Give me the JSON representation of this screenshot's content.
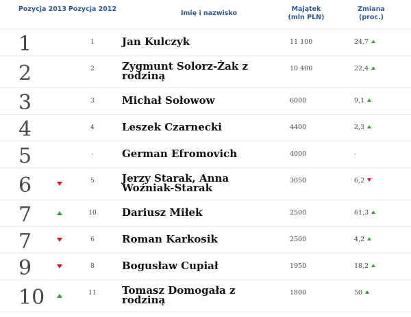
{
  "header": {
    "pos2013": "Pozycja 2013",
    "pos2012": "Pozycja 2012",
    "name": "Imię i nazwisko",
    "wealth": "Majątek (mln PLN)",
    "change": "Zmiana (proc.)"
  },
  "rows": [
    {
      "rank": "1",
      "trend": "",
      "prev": "1",
      "name": "Jan Kulczyk",
      "wealth": "11 100",
      "change": "24,7",
      "change_dir": "up"
    },
    {
      "rank": "2",
      "trend": "",
      "prev": "2",
      "name": "Zygmunt Solorz-Żak z rodziną",
      "wealth": "10 400",
      "change": "22,4",
      "change_dir": "up"
    },
    {
      "rank": "3",
      "trend": "",
      "prev": "3",
      "name": "Michał Sołowow",
      "wealth": "6000",
      "change": "9,1",
      "change_dir": "up"
    },
    {
      "rank": "4",
      "trend": "",
      "prev": "4",
      "name": "Leszek Czarnecki",
      "wealth": "4400",
      "change": "2,3",
      "change_dir": "up"
    },
    {
      "rank": "5",
      "trend": "",
      "prev": "-",
      "name": "German Efromovich",
      "wealth": "4000",
      "change": "-",
      "change_dir": ""
    },
    {
      "rank": "6",
      "trend": "down",
      "prev": "5",
      "name": "Jerzy Starak, Anna Woźniak-Starak",
      "wealth": "3050",
      "change": "6,2",
      "change_dir": "down"
    },
    {
      "rank": "7",
      "trend": "up",
      "prev": "10",
      "name": "Dariusz Miłek",
      "wealth": "2500",
      "change": "61,3",
      "change_dir": "up"
    },
    {
      "rank": "7",
      "trend": "down",
      "prev": "6",
      "name": "Roman Karkosik",
      "wealth": "2500",
      "change": "4,2",
      "change_dir": "up"
    },
    {
      "rank": "9",
      "trend": "down",
      "prev": "8",
      "name": "Bogusław Cupiał",
      "wealth": "1950",
      "change": "18,2",
      "change_dir": "up"
    },
    {
      "rank": "10",
      "trend": "up",
      "prev": "11",
      "name": "Tomasz Domogała z rodziną",
      "wealth": "1800",
      "change": "50",
      "change_dir": "up"
    }
  ],
  "colors": {
    "up": "#3a9a3a",
    "down": "#e01018",
    "header_text": "#2f5a95"
  }
}
